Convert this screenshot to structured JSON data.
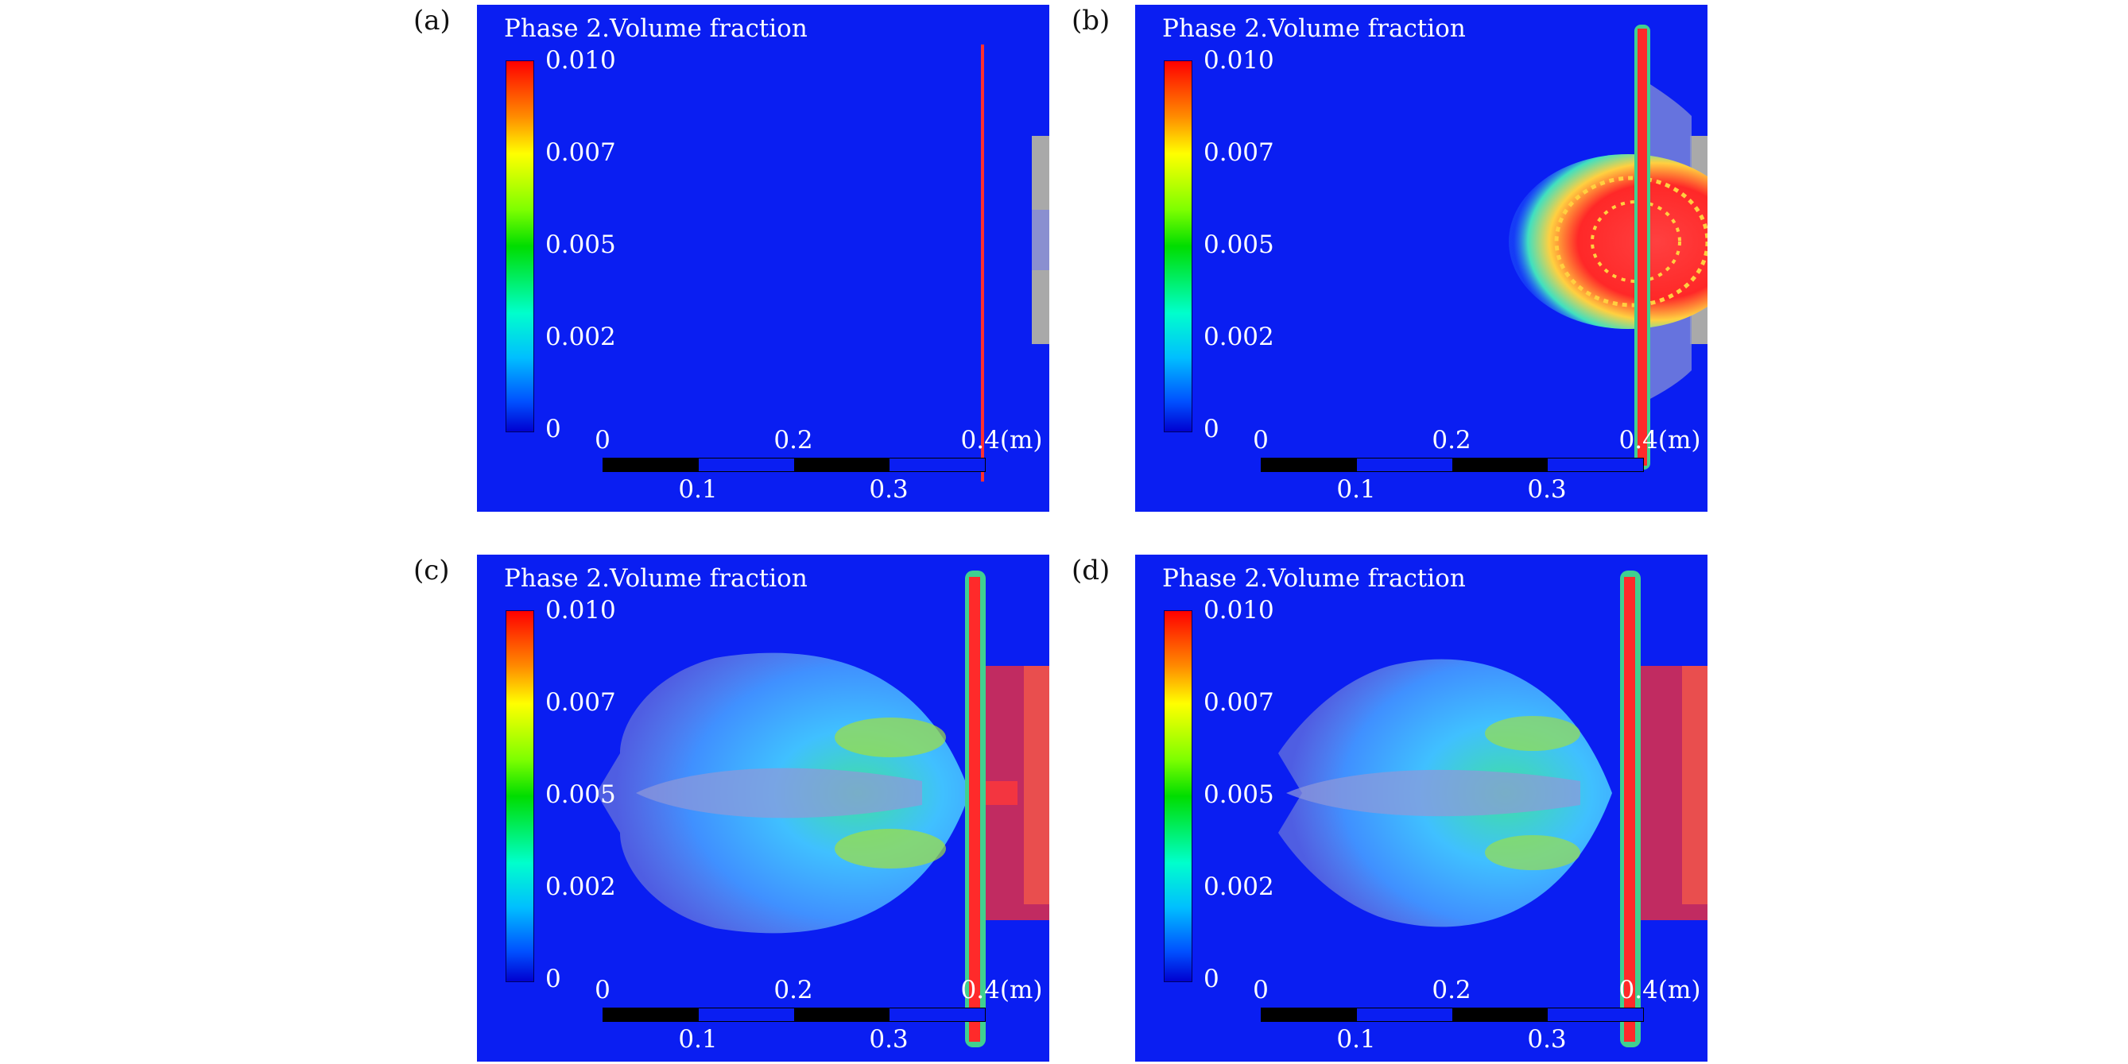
{
  "panels": [
    {
      "label": "(a)",
      "title": "Phase 2.Volume fraction"
    },
    {
      "label": "(b)",
      "title": "Phase 2.Volume fraction"
    },
    {
      "label": "(c)",
      "title": "Phase 2.Volume fraction"
    },
    {
      "label": "(d)",
      "title": "Phase 2.Volume fraction"
    }
  ],
  "colorbar": {
    "ticks": [
      "0.010",
      "0.007",
      "0.005",
      "0.002",
      "0"
    ],
    "colors": [
      "#ff0000",
      "#ffff00",
      "#00dd00",
      "#00ffff",
      "#0000d0"
    ]
  },
  "scalebar": {
    "top_ticks": [
      "0",
      "0.2",
      "0.4(m)"
    ],
    "bottom_ticks": [
      "0.1",
      "0.3"
    ]
  },
  "colors": {
    "background": "#0a1ef2",
    "high": "#ff2020",
    "mid": "#30e080",
    "low": "#40a0ff",
    "wall": "#b0b0b0"
  }
}
